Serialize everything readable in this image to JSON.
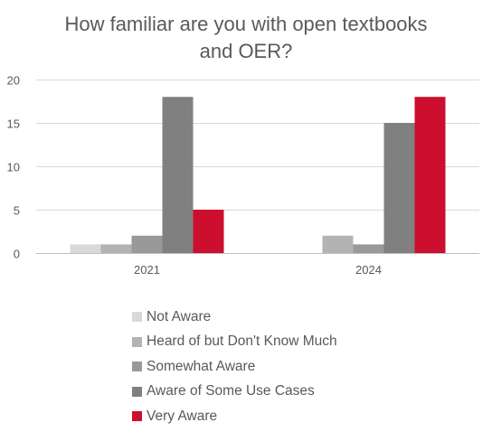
{
  "chart_data": {
    "type": "bar",
    "title_lines": [
      "How familiar are you with open textbooks",
      "and OER?"
    ],
    "categories": [
      "2021",
      "2024"
    ],
    "series": [
      {
        "name": "Not Aware",
        "color": "#d9d9d9",
        "values": [
          1,
          0
        ]
      },
      {
        "name": "Heard of but Don't Know Much",
        "color": "#b3b3b3",
        "values": [
          1,
          2
        ]
      },
      {
        "name": "Somewhat Aware",
        "color": "#999999",
        "values": [
          2,
          1
        ]
      },
      {
        "name": "Aware of Some Use Cases",
        "color": "#808080",
        "values": [
          18,
          15
        ]
      },
      {
        "name": "Very Aware",
        "color": "#cc0f2e",
        "values": [
          5,
          18
        ]
      }
    ],
    "ylim": [
      0,
      20
    ],
    "yticks": [
      "0",
      "5",
      "10",
      "15",
      "20"
    ],
    "grid": true,
    "legend_position": "bottom"
  }
}
